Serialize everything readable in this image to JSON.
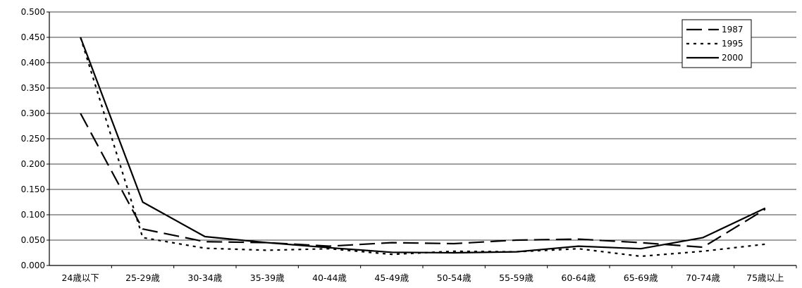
{
  "chart_data": {
    "type": "line",
    "title": "",
    "xlabel": "",
    "ylabel": "",
    "categories": [
      "24歳以下",
      "25-29歳",
      "30-34歳",
      "35-39歳",
      "40-44歳",
      "45-49歳",
      "50-54歳",
      "55-59歳",
      "60-64歳",
      "65-69歳",
      "70-74歳",
      "75歳以上"
    ],
    "ylim": [
      0,
      0.5
    ],
    "yticks": [
      "0.000",
      "0.050",
      "0.100",
      "0.150",
      "0.200",
      "0.250",
      "0.300",
      "0.350",
      "0.400",
      "0.450",
      "0.500"
    ],
    "grid": true,
    "legend_position": "top-right",
    "series": [
      {
        "name": "1987",
        "style": "long-dash",
        "color": "#000000",
        "values": [
          0.3,
          0.072,
          0.047,
          0.045,
          0.038,
          0.045,
          0.043,
          0.05,
          0.052,
          0.045,
          0.036,
          0.111
        ]
      },
      {
        "name": "1995",
        "style": "dotted",
        "color": "#000000",
        "values": [
          0.45,
          0.055,
          0.034,
          0.03,
          0.033,
          0.022,
          0.028,
          0.027,
          0.033,
          0.018,
          0.028,
          0.042
        ]
      },
      {
        "name": "2000",
        "style": "solid",
        "color": "#000000",
        "values": [
          0.45,
          0.125,
          0.057,
          0.045,
          0.035,
          0.026,
          0.025,
          0.027,
          0.038,
          0.033,
          0.055,
          0.113
        ]
      }
    ]
  }
}
